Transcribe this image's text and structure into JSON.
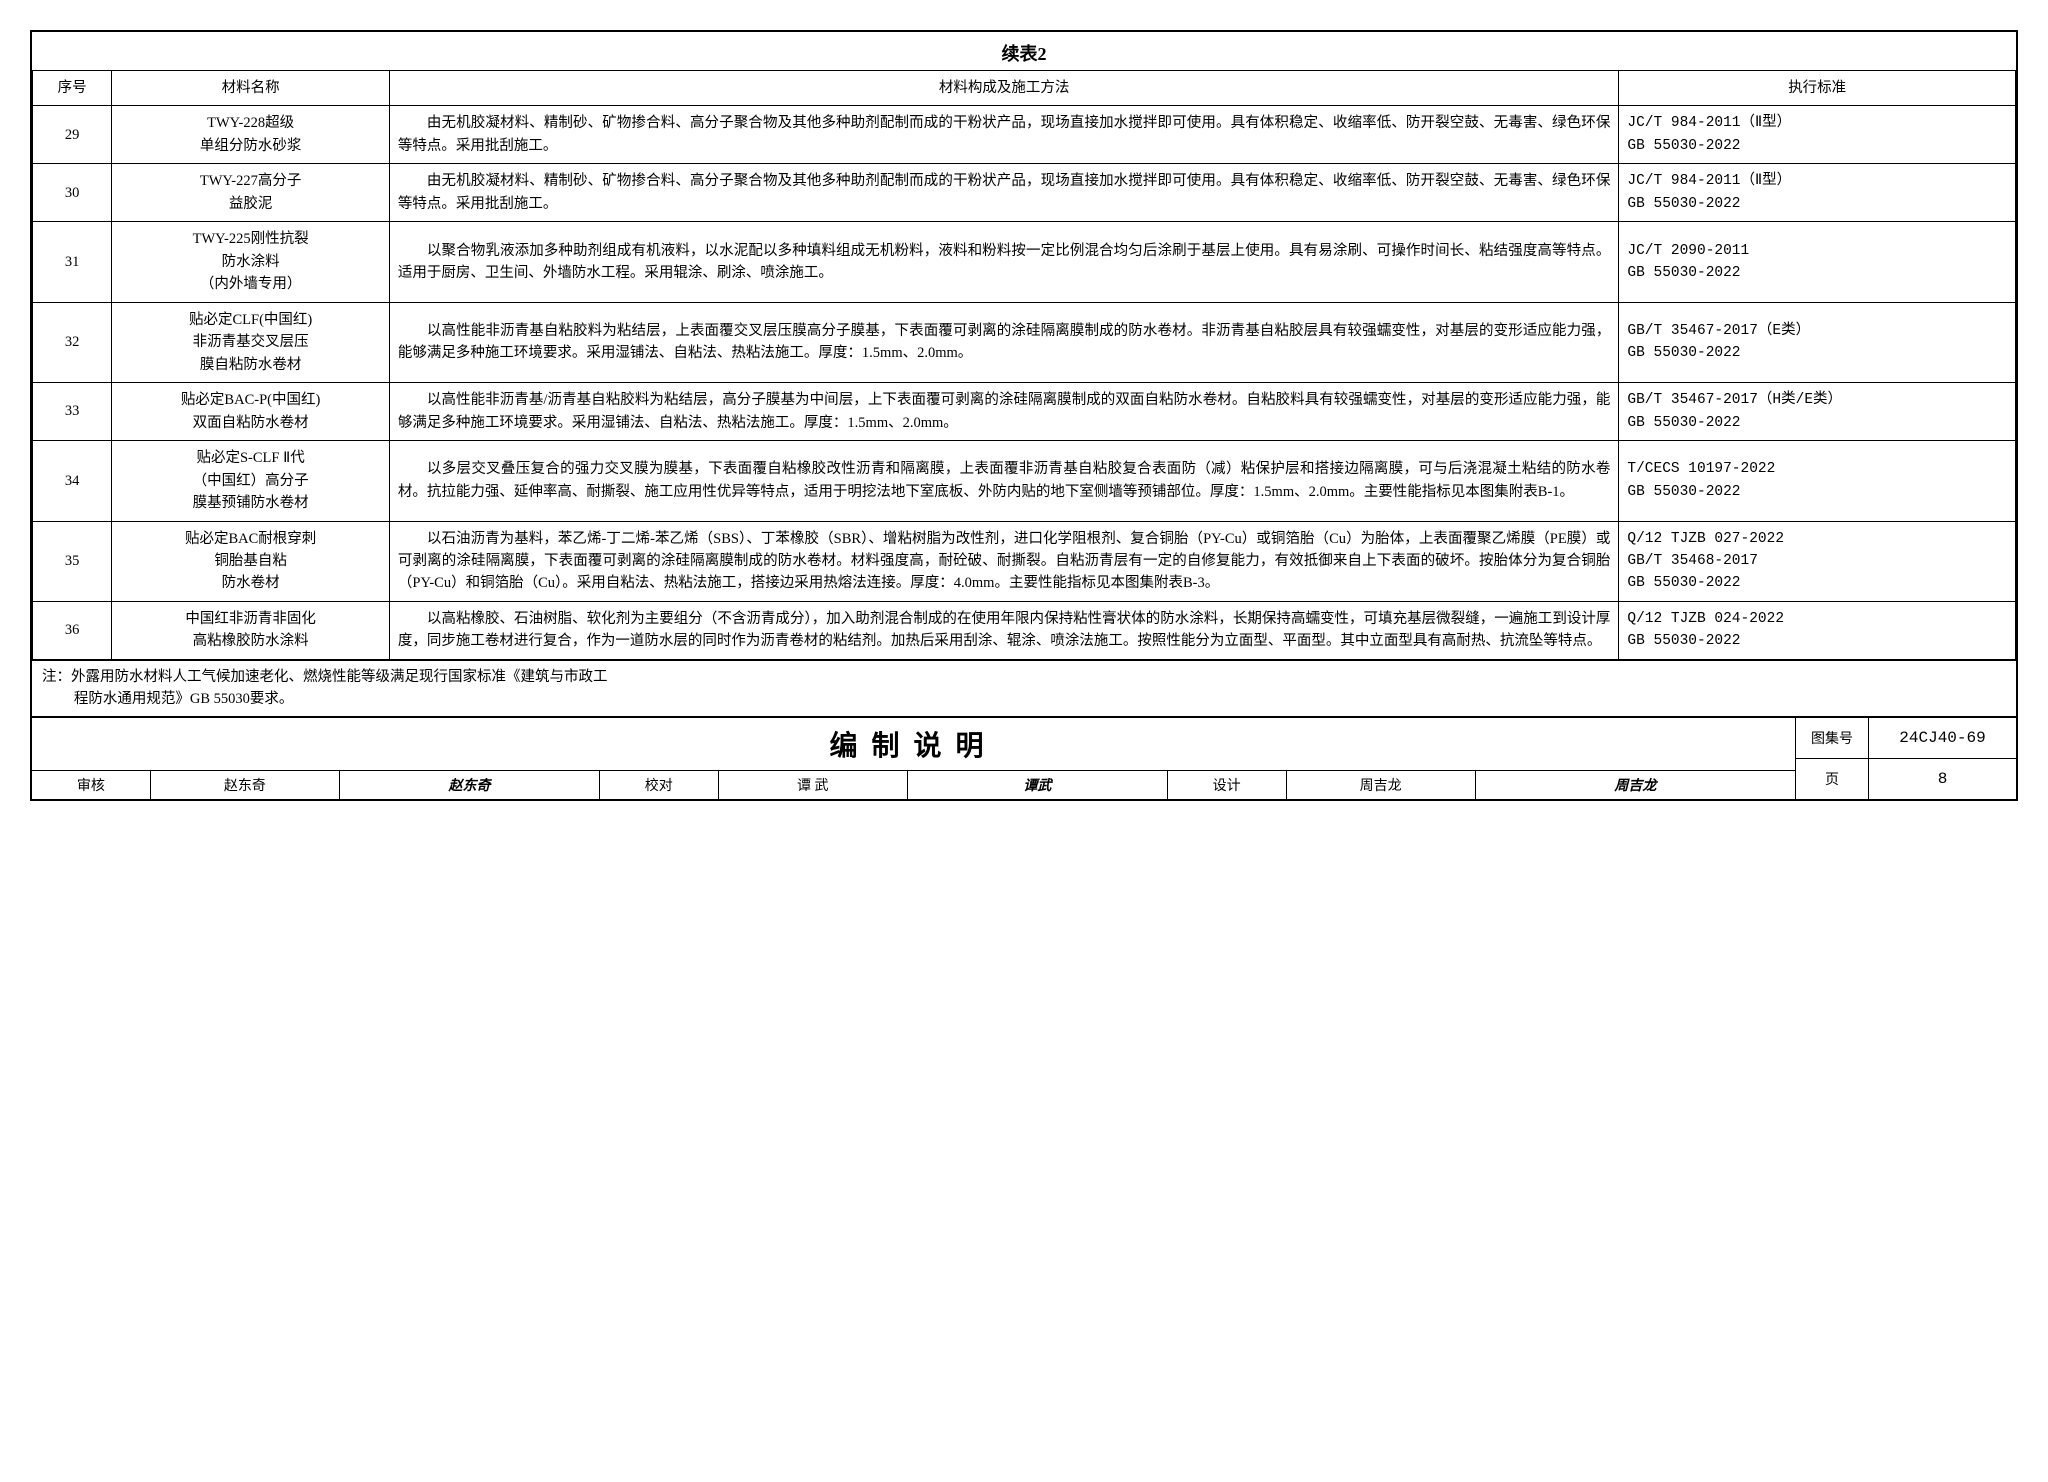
{
  "caption": "续表2",
  "headers": {
    "seq": "序号",
    "name": "材料名称",
    "desc": "材料构成及施工方法",
    "std": "执行标准"
  },
  "rows": [
    {
      "seq": "29",
      "name": "TWY-228超级\n单组分防水砂浆",
      "desc": "由无机胶凝材料、精制砂、矿物掺合料、高分子聚合物及其他多种助剂配制而成的干粉状产品，现场直接加水搅拌即可使用。具有体积稳定、收缩率低、防开裂空鼓、无毒害、绿色环保等特点。采用批刮施工。",
      "std": "JC/T 984-2011（Ⅱ型）\nGB 55030-2022"
    },
    {
      "seq": "30",
      "name": "TWY-227高分子\n益胶泥",
      "desc": "由无机胶凝材料、精制砂、矿物掺合料、高分子聚合物及其他多种助剂配制而成的干粉状产品，现场直接加水搅拌即可使用。具有体积稳定、收缩率低、防开裂空鼓、无毒害、绿色环保等特点。采用批刮施工。",
      "std": "JC/T 984-2011（Ⅱ型）\nGB 55030-2022"
    },
    {
      "seq": "31",
      "name": "TWY-225刚性抗裂\n防水涂料\n（内外墙专用）",
      "desc": "以聚合物乳液添加多种助剂组成有机液料，以水泥配以多种填料组成无机粉料，液料和粉料按一定比例混合均匀后涂刷于基层上使用。具有易涂刷、可操作时间长、粘结强度高等特点。适用于厨房、卫生间、外墙防水工程。采用辊涂、刷涂、喷涂施工。",
      "std": "JC/T 2090-2011\nGB 55030-2022"
    },
    {
      "seq": "32",
      "name": "贴必定CLF(中国红)\n非沥青基交叉层压\n膜自粘防水卷材",
      "desc": "以高性能非沥青基自粘胶料为粘结层，上表面覆交叉层压膜高分子膜基，下表面覆可剥离的涂硅隔离膜制成的防水卷材。非沥青基自粘胶层具有较强蠕变性，对基层的变形适应能力强，能够满足多种施工环境要求。采用湿铺法、自粘法、热粘法施工。厚度：1.5mm、2.0mm。",
      "std": "GB/T 35467-2017（E类）\nGB 55030-2022"
    },
    {
      "seq": "33",
      "name": "贴必定BAC-P(中国红)\n双面自粘防水卷材",
      "desc": "以高性能非沥青基/沥青基自粘胶料为粘结层，高分子膜基为中间层，上下表面覆可剥离的涂硅隔离膜制成的双面自粘防水卷材。自粘胶料具有较强蠕变性，对基层的变形适应能力强，能够满足多种施工环境要求。采用湿铺法、自粘法、热粘法施工。厚度：1.5mm、2.0mm。",
      "std": "GB/T 35467-2017（H类/E类）\nGB 55030-2022"
    },
    {
      "seq": "34",
      "name": "贴必定S-CLF Ⅱ代\n（中国红）高分子\n膜基预铺防水卷材",
      "desc": "以多层交叉叠压复合的强力交叉膜为膜基，下表面覆自粘橡胶改性沥青和隔离膜，上表面覆非沥青基自粘胶复合表面防（减）粘保护层和搭接边隔离膜，可与后浇混凝土粘结的防水卷材。抗拉能力强、延伸率高、耐撕裂、施工应用性优异等特点，适用于明挖法地下室底板、外防内贴的地下室侧墙等预铺部位。厚度：1.5mm、2.0mm。主要性能指标见本图集附表B-1。",
      "std": "T/CECS 10197-2022\nGB 55030-2022"
    },
    {
      "seq": "35",
      "name": "贴必定BAC耐根穿刺\n铜胎基自粘\n防水卷材",
      "desc": "以石油沥青为基料，苯乙烯-丁二烯-苯乙烯（SBS）、丁苯橡胶（SBR）、增粘树脂为改性剂，进口化学阻根剂、复合铜胎（PY-Cu）或铜箔胎（Cu）为胎体，上表面覆聚乙烯膜（PE膜）或可剥离的涂硅隔离膜，下表面覆可剥离的涂硅隔离膜制成的防水卷材。材料强度高，耐砼破、耐撕裂。自粘沥青层有一定的自修复能力，有效抵御来自上下表面的破坏。按胎体分为复合铜胎（PY-Cu）和铜箔胎（Cu）。采用自粘法、热粘法施工，搭接边采用热熔法连接。厚度：4.0mm。主要性能指标见本图集附表B-3。",
      "std": "Q/12 TJZB 027-2022\nGB/T 35468-2017\nGB 55030-2022"
    },
    {
      "seq": "36",
      "name": "中国红非沥青非固化\n高粘橡胶防水涂料",
      "desc": "以高粘橡胶、石油树脂、软化剂为主要组分（不含沥青成分），加入助剂混合制成的在使用年限内保持粘性膏状体的防水涂料，长期保持高蠕变性，可填充基层微裂缝，一遍施工到设计厚度，同步施工卷材进行复合，作为一道防水层的同时作为沥青卷材的粘结剂。加热后采用刮涂、辊涂、喷涂法施工。按照性能分为立面型、平面型。其中立面型具有高耐热、抗流坠等特点。",
      "std": "Q/12 TJZB 024-2022\nGB 55030-2022"
    }
  ],
  "note_line1": "注：外露用防水材料人工气候加速老化、燃烧性能等级满足现行国家标准《建筑与市政工",
  "note_line2": "程防水通用规范》GB 55030要求。",
  "title_block": {
    "title": "编制说明",
    "review_label": "审核",
    "review_name": "赵东奇",
    "review_sig": "赵东奇",
    "check_label": "校对",
    "check_name": "谭 武",
    "check_sig": "谭武",
    "design_label": "设计",
    "design_name": "周吉龙",
    "design_sig": "周吉龙",
    "set_no_label": "图集号",
    "set_no": "24CJ40-69",
    "page_label": "页",
    "page_no": "8"
  }
}
